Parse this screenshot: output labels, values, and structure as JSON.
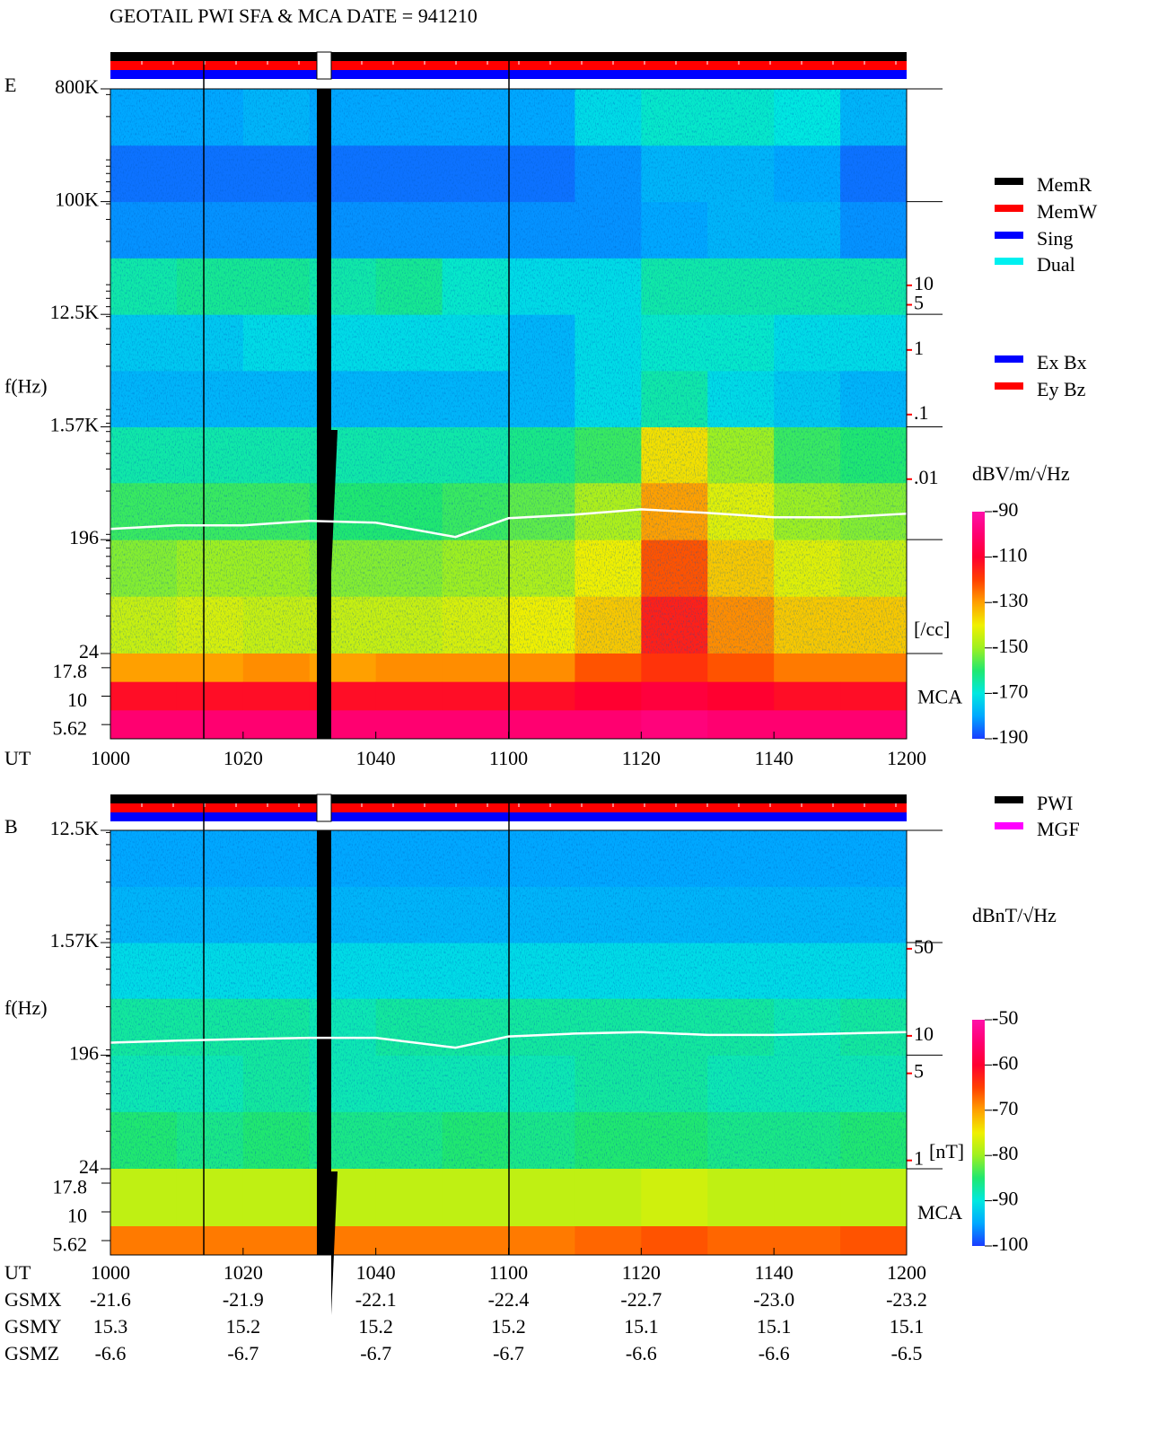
{
  "title": "GEOTAIL  PWI SFA & MCA   DATE = 941210",
  "orbit": {
    "rows": [
      {
        "name": "GSMX",
        "values": [
          "-21.6",
          "-21.9",
          "-22.1",
          "-22.4",
          "-22.7",
          "-23.0",
          "-23.2"
        ]
      },
      {
        "name": "GSMY",
        "values": [
          "15.3",
          "15.2",
          "15.2",
          "15.2",
          "15.1",
          "15.1",
          "15.1"
        ]
      },
      {
        "name": "GSMZ",
        "values": [
          "-6.6",
          "-6.7",
          "-6.7",
          "-6.7",
          "-6.6",
          "-6.6",
          "-6.5"
        ]
      }
    ]
  },
  "chart_data": [
    {
      "type": "spectrogram",
      "panel": "E",
      "ylabel": "f(Hz)",
      "xlabel": "UT",
      "xlim": [
        600,
        720
      ],
      "xticks": [
        {
          "value": 600,
          "label": "1000"
        },
        {
          "value": 620,
          "label": "1020"
        },
        {
          "value": 640,
          "label": "1040"
        },
        {
          "value": 660,
          "label": "1100"
        },
        {
          "value": 680,
          "label": "1120"
        },
        {
          "value": 700,
          "label": "1140"
        },
        {
          "value": 720,
          "label": "1200"
        }
      ],
      "yscale": "log",
      "ylim": [
        24,
        800000
      ],
      "yticks": [
        {
          "value": 800000,
          "label": "800K"
        },
        {
          "value": 100000,
          "label": "100K"
        },
        {
          "value": 12500,
          "label": "12.5K"
        },
        {
          "value": 1570,
          "label": "1.57K"
        },
        196,
        24
      ],
      "t_edges": [
        600,
        610,
        620,
        630,
        640,
        650,
        660,
        670,
        680,
        690,
        700,
        710,
        720
      ],
      "f_edges": [
        24,
        69,
        196,
        560,
        1570,
        4430,
        12500,
        35400,
        100000,
        283000,
        800000
      ],
      "z": [
        [
          -145,
          -143,
          -145,
          -145,
          -145,
          -143,
          -140,
          -135,
          -115,
          -128,
          -135,
          -135
        ],
        [
          -152,
          -150,
          -150,
          -152,
          -152,
          -150,
          -148,
          -140,
          -122,
          -135,
          -142,
          -145
        ],
        [
          -158,
          -158,
          -158,
          -160,
          -160,
          -158,
          -155,
          -148,
          -130,
          -142,
          -150,
          -152
        ],
        [
          -165,
          -165,
          -165,
          -165,
          -165,
          -165,
          -162,
          -158,
          -138,
          -150,
          -158,
          -160
        ],
        [
          -178,
          -178,
          -178,
          -178,
          -178,
          -178,
          -178,
          -172,
          -165,
          -172,
          -175,
          -178
        ],
        [
          -175,
          -175,
          -172,
          -172,
          -172,
          -172,
          -178,
          -172,
          -168,
          -168,
          -172,
          -172
        ],
        [
          -165,
          -163,
          -163,
          -165,
          -163,
          -168,
          -172,
          -172,
          -165,
          -165,
          -165,
          -165
        ],
        [
          -182,
          -182,
          -182,
          -182,
          -182,
          -182,
          -182,
          -182,
          -180,
          -178,
          -178,
          -182
        ],
        [
          -185,
          -185,
          -185,
          -185,
          -185,
          -185,
          -185,
          -182,
          -178,
          -178,
          -180,
          -185
        ],
        [
          -180,
          -180,
          -178,
          -180,
          -180,
          -180,
          -180,
          -172,
          -168,
          -168,
          -170,
          -178
        ]
      ],
      "mca_label": "MCA",
      "mca_ticks": [
        17.8,
        10,
        5.62
      ],
      "mca_values": [
        [
          -130,
          -130,
          -128,
          -130,
          -128,
          -128,
          -128,
          -122,
          -118,
          -122,
          -126,
          -126
        ],
        [
          -112,
          -112,
          -112,
          -112,
          -112,
          -112,
          -112,
          -110,
          -108,
          -110,
          -112,
          -112
        ],
        [
          -100,
          -100,
          -100,
          -100,
          -100,
          -100,
          -100,
          -100,
          -98,
          -100,
          -100,
          -100
        ]
      ],
      "colorbar": {
        "label": "dBV/m/√Hz",
        "lim": [
          -190,
          -90
        ],
        "ticks": [
          -90,
          -110,
          -130,
          -150,
          -170,
          -190
        ]
      },
      "trace": {
        "color": "#ffffff",
        "x": [
          600,
          610,
          620,
          630,
          640,
          652,
          660,
          670,
          680,
          690,
          700,
          710,
          720
        ],
        "y": [
          239,
          255,
          255,
          277,
          268,
          206,
          291,
          311,
          343,
          321,
          296,
          296,
          316
        ]
      },
      "y2": {
        "label": "[/cc]",
        "color": "#ff0000",
        "lim": [
          2e-05,
          11000
        ],
        "ticks": [
          10,
          5,
          1,
          {
            "value": 0.1,
            "label": ".1"
          },
          {
            "value": 0.01,
            "label": ".01"
          }
        ]
      },
      "legends": [
        [
          {
            "name": "MemR",
            "color": "#000000"
          },
          {
            "name": "MemW",
            "color": "#ff0000"
          },
          {
            "name": "Sing",
            "color": "#0000ff"
          },
          {
            "name": "Dual",
            "color": "#00f0f0"
          }
        ],
        [
          {
            "name": "Ex Bx",
            "color": "#0000ff"
          },
          {
            "name": "Ey Bz",
            "color": "#ff0000"
          }
        ]
      ]
    },
    {
      "type": "spectrogram",
      "panel": "B",
      "ylabel": "f(Hz)",
      "xlabel": "UT",
      "xlim": [
        600,
        720
      ],
      "xticks": [
        {
          "value": 600,
          "label": "1000"
        },
        {
          "value": 620,
          "label": "1020"
        },
        {
          "value": 640,
          "label": "1040"
        },
        {
          "value": 660,
          "label": "1100"
        },
        {
          "value": 680,
          "label": "1120"
        },
        {
          "value": 700,
          "label": "1140"
        },
        {
          "value": 720,
          "label": "1200"
        }
      ],
      "yscale": "log",
      "ylim": [
        24,
        12500
      ],
      "yticks": [
        {
          "value": 12500,
          "label": "12.5K"
        },
        {
          "value": 1570,
          "label": "1.57K"
        },
        196,
        24
      ],
      "t_edges": [
        600,
        610,
        620,
        630,
        640,
        650,
        660,
        670,
        680,
        690,
        700,
        710,
        720
      ],
      "f_edges": [
        24,
        69,
        196,
        560,
        1570,
        4430,
        12500
      ],
      "z": [
        [
          -85,
          -86,
          -85,
          -86,
          -86,
          -85,
          -86,
          -85,
          -85,
          -86,
          -86,
          -85
        ],
        [
          -88,
          -88,
          -87,
          -88,
          -88,
          -88,
          -88,
          -87,
          -87,
          -88,
          -88,
          -88
        ],
        [
          -87,
          -87,
          -87,
          -88,
          -87,
          -87,
          -87,
          -87,
          -87,
          -87,
          -88,
          -87
        ],
        [
          -91,
          -91,
          -91,
          -91,
          -91,
          -91,
          -91,
          -91,
          -91,
          -91,
          -91,
          -91
        ],
        [
          -94,
          -94,
          -94,
          -94,
          -94,
          -94,
          -94,
          -94,
          -94,
          -94,
          -94,
          -94
        ],
        [
          -95,
          -95,
          -95,
          -95,
          -95,
          -95,
          -95,
          -95,
          -95,
          -95,
          -95,
          -95
        ]
      ],
      "mca_label": "MCA",
      "mca_ticks": [
        17.8,
        10,
        5.62
      ],
      "mca_values": [
        [
          -78,
          -78,
          -78,
          -78,
          -78,
          -78,
          -78,
          -78,
          -77,
          -78,
          -78,
          -78
        ],
        [
          -78,
          -78,
          -78,
          -78,
          -78,
          -78,
          -78,
          -78,
          -77,
          -78,
          -78,
          -78
        ],
        [
          -68,
          -68,
          -68,
          -68,
          -68,
          -68,
          -68,
          -67,
          -66,
          -67,
          -67,
          -66
        ]
      ],
      "colorbar": {
        "label": "dBnT/√Hz",
        "lim": [
          -100,
          -50
        ],
        "ticks": [
          -50,
          -60,
          -70,
          -80,
          -90,
          -100
        ]
      },
      "trace": {
        "color": "#ffffff",
        "x": [
          600,
          610,
          620,
          630,
          640,
          652,
          660,
          670,
          680,
          690,
          700,
          710,
          720
        ],
        "y": [
          247,
          256,
          264,
          270,
          270,
          225,
          277,
          292,
          300,
          285,
          285,
          292,
          300
        ]
      },
      "y2": {
        "label": "[nT]",
        "color": "#ff0000",
        "lim": [
          0.857,
          446
        ],
        "ticks": [
          50,
          10,
          5,
          1
        ]
      },
      "legends": [
        [
          {
            "name": "PWI",
            "color": "#000000"
          },
          {
            "name": "MGF",
            "color": "#ff00ff"
          }
        ]
      ]
    }
  ]
}
